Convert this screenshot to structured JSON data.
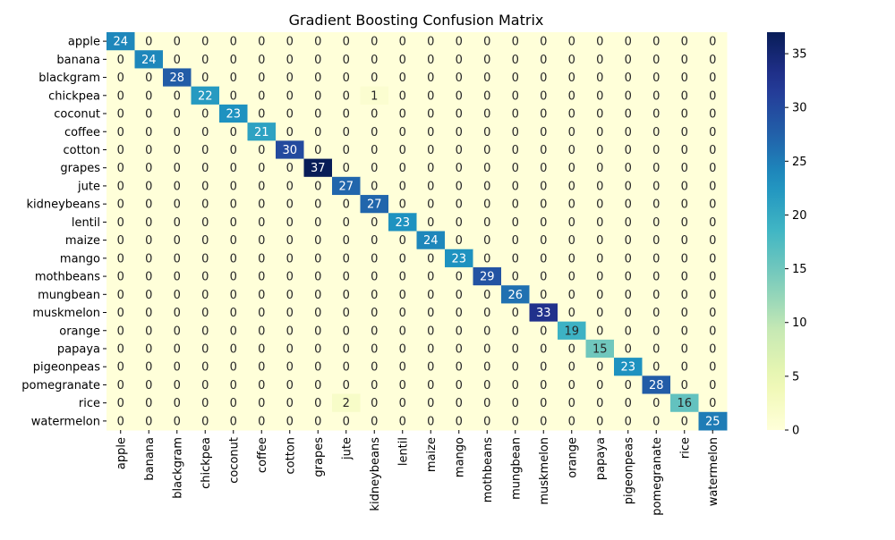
{
  "chart_data": {
    "type": "heatmap",
    "title": "Gradient Boosting Confusion Matrix",
    "xlabel": "",
    "ylabel": "",
    "row_labels": [
      "apple",
      "banana",
      "blackgram",
      "chickpea",
      "coconut",
      "coffee",
      "cotton",
      "grapes",
      "jute",
      "kidneybeans",
      "lentil",
      "maize",
      "mango",
      "mothbeans",
      "mungbean",
      "muskmelon",
      "orange",
      "papaya",
      "pigeonpeas",
      "pomegranate",
      "rice",
      "watermelon"
    ],
    "col_labels": [
      "apple",
      "banana",
      "blackgram",
      "chickpea",
      "coconut",
      "coffee",
      "cotton",
      "grapes",
      "jute",
      "kidneybeans",
      "lentil",
      "maize",
      "mango",
      "mothbeans",
      "mungbean",
      "muskmelon",
      "orange",
      "papaya",
      "pigeonpeas",
      "pomegranate",
      "rice",
      "watermelon"
    ],
    "values": [
      [
        24,
        0,
        0,
        0,
        0,
        0,
        0,
        0,
        0,
        0,
        0,
        0,
        0,
        0,
        0,
        0,
        0,
        0,
        0,
        0,
        0,
        0
      ],
      [
        0,
        24,
        0,
        0,
        0,
        0,
        0,
        0,
        0,
        0,
        0,
        0,
        0,
        0,
        0,
        0,
        0,
        0,
        0,
        0,
        0,
        0
      ],
      [
        0,
        0,
        28,
        0,
        0,
        0,
        0,
        0,
        0,
        0,
        0,
        0,
        0,
        0,
        0,
        0,
        0,
        0,
        0,
        0,
        0,
        0
      ],
      [
        0,
        0,
        0,
        22,
        0,
        0,
        0,
        0,
        0,
        1,
        0,
        0,
        0,
        0,
        0,
        0,
        0,
        0,
        0,
        0,
        0,
        0
      ],
      [
        0,
        0,
        0,
        0,
        23,
        0,
        0,
        0,
        0,
        0,
        0,
        0,
        0,
        0,
        0,
        0,
        0,
        0,
        0,
        0,
        0,
        0
      ],
      [
        0,
        0,
        0,
        0,
        0,
        21,
        0,
        0,
        0,
        0,
        0,
        0,
        0,
        0,
        0,
        0,
        0,
        0,
        0,
        0,
        0,
        0
      ],
      [
        0,
        0,
        0,
        0,
        0,
        0,
        30,
        0,
        0,
        0,
        0,
        0,
        0,
        0,
        0,
        0,
        0,
        0,
        0,
        0,
        0,
        0
      ],
      [
        0,
        0,
        0,
        0,
        0,
        0,
        0,
        37,
        0,
        0,
        0,
        0,
        0,
        0,
        0,
        0,
        0,
        0,
        0,
        0,
        0,
        0
      ],
      [
        0,
        0,
        0,
        0,
        0,
        0,
        0,
        0,
        27,
        0,
        0,
        0,
        0,
        0,
        0,
        0,
        0,
        0,
        0,
        0,
        0,
        0
      ],
      [
        0,
        0,
        0,
        0,
        0,
        0,
        0,
        0,
        0,
        27,
        0,
        0,
        0,
        0,
        0,
        0,
        0,
        0,
        0,
        0,
        0,
        0
      ],
      [
        0,
        0,
        0,
        0,
        0,
        0,
        0,
        0,
        0,
        0,
        23,
        0,
        0,
        0,
        0,
        0,
        0,
        0,
        0,
        0,
        0,
        0
      ],
      [
        0,
        0,
        0,
        0,
        0,
        0,
        0,
        0,
        0,
        0,
        0,
        24,
        0,
        0,
        0,
        0,
        0,
        0,
        0,
        0,
        0,
        0
      ],
      [
        0,
        0,
        0,
        0,
        0,
        0,
        0,
        0,
        0,
        0,
        0,
        0,
        23,
        0,
        0,
        0,
        0,
        0,
        0,
        0,
        0,
        0
      ],
      [
        0,
        0,
        0,
        0,
        0,
        0,
        0,
        0,
        0,
        0,
        0,
        0,
        0,
        29,
        0,
        0,
        0,
        0,
        0,
        0,
        0,
        0
      ],
      [
        0,
        0,
        0,
        0,
        0,
        0,
        0,
        0,
        0,
        0,
        0,
        0,
        0,
        0,
        26,
        0,
        0,
        0,
        0,
        0,
        0,
        0
      ],
      [
        0,
        0,
        0,
        0,
        0,
        0,
        0,
        0,
        0,
        0,
        0,
        0,
        0,
        0,
        0,
        33,
        0,
        0,
        0,
        0,
        0,
        0
      ],
      [
        0,
        0,
        0,
        0,
        0,
        0,
        0,
        0,
        0,
        0,
        0,
        0,
        0,
        0,
        0,
        0,
        19,
        0,
        0,
        0,
        0,
        0
      ],
      [
        0,
        0,
        0,
        0,
        0,
        0,
        0,
        0,
        0,
        0,
        0,
        0,
        0,
        0,
        0,
        0,
        0,
        15,
        0,
        0,
        0,
        0
      ],
      [
        0,
        0,
        0,
        0,
        0,
        0,
        0,
        0,
        0,
        0,
        0,
        0,
        0,
        0,
        0,
        0,
        0,
        0,
        23,
        0,
        0,
        0
      ],
      [
        0,
        0,
        0,
        0,
        0,
        0,
        0,
        0,
        0,
        0,
        0,
        0,
        0,
        0,
        0,
        0,
        0,
        0,
        0,
        28,
        0,
        0
      ],
      [
        0,
        0,
        0,
        0,
        0,
        0,
        0,
        0,
        2,
        0,
        0,
        0,
        0,
        0,
        0,
        0,
        0,
        0,
        0,
        0,
        16,
        0
      ],
      [
        0,
        0,
        0,
        0,
        0,
        0,
        0,
        0,
        0,
        0,
        0,
        0,
        0,
        0,
        0,
        0,
        0,
        0,
        0,
        0,
        0,
        25
      ]
    ],
    "colorbar": {
      "min": 0,
      "max": 37,
      "ticks": [
        0,
        5,
        10,
        15,
        20,
        25,
        30,
        35
      ],
      "colormap": "YlGnBu"
    },
    "grid": false,
    "legend": "colorbar-right"
  }
}
